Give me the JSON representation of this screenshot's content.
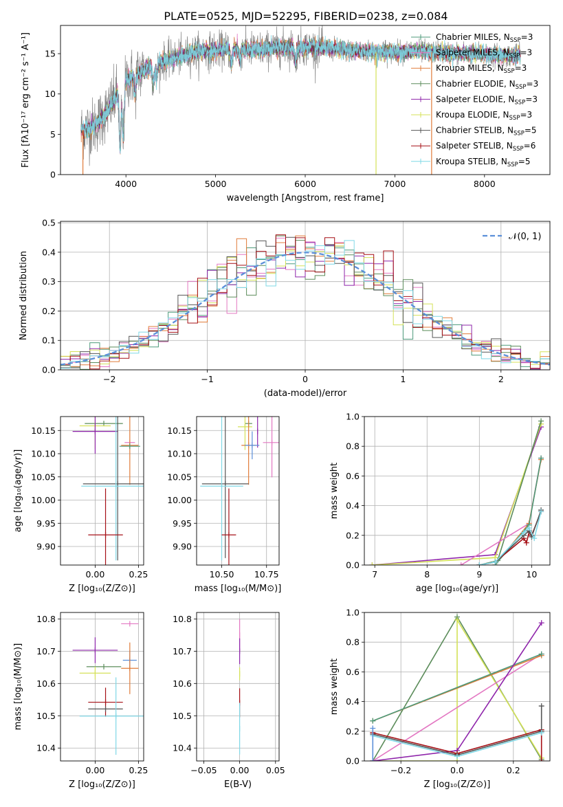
{
  "title": "PLATE=0525, MJD=52295, FIBERID=0238, z=0.084",
  "colors": {
    "chabrier_miles": "#4c9a7a",
    "salpeter_miles": "#e377c2",
    "kroupa_miles": "#e07b39",
    "chabrier_elodie": "#5b8c5a",
    "salpeter_elodie": "#8e24aa",
    "kroupa_elodie": "#d4e157",
    "chabrier_stelib": "#555555",
    "salpeter_stelib": "#a50f15",
    "kroupa_stelib": "#7fd8e6",
    "model_blue": "#5b8fd9",
    "normal": "#5b8fd9"
  },
  "chart_data": [
    {
      "id": "spectrum",
      "type": "line",
      "title": "PLATE=0525, MJD=52295, FIBERID=0238, z=0.084",
      "xlabel": "wavelength [Angstrom, rest frame]",
      "ylabel": "Flux [fλ10⁻¹⁷ erg cm⁻² s⁻¹ A⁻¹]",
      "xlim": [
        3270,
        8730
      ],
      "ylim": [
        0,
        18.5
      ],
      "xticks": [
        4000,
        5000,
        6000,
        7000,
        8000
      ],
      "yticks": [
        0,
        5,
        10,
        15
      ],
      "grid": false,
      "legend_position": "right",
      "legend": [
        {
          "label": "Chabrier MILES, N",
          "sub": "SSP",
          "suffix": "=3",
          "color": "#4c9a7a"
        },
        {
          "label": "Salpeter MILES, N",
          "sub": "SSP",
          "suffix": "=3",
          "color": "#e377c2"
        },
        {
          "label": "Kroupa MILES, N",
          "sub": "SSP",
          "suffix": "=3",
          "color": "#e07b39"
        },
        {
          "label": "Chabrier ELODIE, N",
          "sub": "SSP",
          "suffix": "=3",
          "color": "#5b8c5a"
        },
        {
          "label": "Salpeter ELODIE, N",
          "sub": "SSP",
          "suffix": "=3",
          "color": "#8e24aa"
        },
        {
          "label": "Kroupa ELODIE, N",
          "sub": "SSP",
          "suffix": "=3",
          "color": "#d4e157"
        },
        {
          "label": "Chabrier STELIB, N",
          "sub": "SSP",
          "suffix": "=5",
          "color": "#555555"
        },
        {
          "label": "Salpeter STELIB, N",
          "sub": "SSP",
          "suffix": "=6",
          "color": "#a50f15"
        },
        {
          "label": "Kroupa STELIB, N",
          "sub": "SSP",
          "suffix": "=5",
          "color": "#7fd8e6"
        }
      ],
      "continuum": {
        "x": [
          3500,
          3650,
          3800,
          3950,
          4050,
          4200,
          4400,
          4600,
          4800,
          5000,
          5200,
          5400,
          5600,
          5800,
          6000,
          6200,
          6400,
          6600,
          6800,
          7000,
          7200,
          7400,
          7600,
          7800,
          8000,
          8200,
          8400
        ],
        "y": [
          5.5,
          6.0,
          8.0,
          11.0,
          12.0,
          13.0,
          14.0,
          14.6,
          15.3,
          15.4,
          15.6,
          15.5,
          15.6,
          15.8,
          15.8,
          15.7,
          15.5,
          15.3,
          15.2,
          15.2,
          15.3,
          15.2,
          15.1,
          15.0,
          14.9,
          14.8,
          14.7
        ]
      },
      "dips": [
        {
          "x": 3935,
          "y": 3.0
        },
        {
          "x": 3970,
          "y": 4.5
        },
        {
          "x": 4100,
          "y": 10.0
        },
        {
          "x": 4305,
          "y": 11.5
        },
        {
          "x": 4340,
          "y": 12.0
        },
        {
          "x": 5175,
          "y": 13.5
        },
        {
          "x": 5270,
          "y": 14.2
        },
        {
          "x": 5890,
          "y": 13.8
        }
      ],
      "spikes_to_zero": [
        3520,
        6790,
        7410
      ]
    },
    {
      "id": "residuals",
      "type": "line",
      "xlabel": "(data-model)/error",
      "ylabel": "Normed distribution",
      "xlim": [
        -2.5,
        2.5
      ],
      "ylim": [
        0,
        0.505
      ],
      "xticks": [
        -2,
        -1,
        0,
        1,
        2
      ],
      "yticks": [
        0.0,
        0.1,
        0.2,
        0.3,
        0.4,
        0.5
      ],
      "grid": true,
      "legend_position": "top-right",
      "normal_label": "𝒩(0, 1)",
      "hist_bin_width": 0.1
    },
    {
      "id": "age_vs_Z",
      "type": "scatter",
      "xlabel": "Z [log₁₀(Z/Z⊙)]",
      "ylabel": "age  [log₁₀(age/yr)]",
      "xlim": [
        -0.2,
        0.28
      ],
      "ylim": [
        9.86,
        10.18
      ],
      "xticks": [
        0.0,
        0.25
      ],
      "xtick_labels": [
        "0.00",
        "0.25"
      ],
      "yticks": [
        9.9,
        9.95,
        10.0,
        10.05,
        10.1,
        10.15
      ],
      "ytick_labels": [
        "9.90",
        "9.95",
        "10.00",
        "10.05",
        "10.10",
        "10.15"
      ],
      "grid": true,
      "points": [
        {
          "model": "chabrier_elodie",
          "x": 0.05,
          "y": 10.165,
          "xerr": 0.11,
          "yerr": 0.0
        },
        {
          "model": "kroupa_elodie",
          "x": 0.0,
          "y": 10.16,
          "xerr": 0.09,
          "yerr": 0.05
        },
        {
          "model": "salpeter_elodie",
          "x": 0.0,
          "y": 10.148,
          "xerr": 0.13,
          "yerr": 0.048
        },
        {
          "model": "salpeter_miles",
          "x": 0.2,
          "y": 10.124,
          "xerr": 0.03,
          "yerr": 0.0
        },
        {
          "model": "kroupa_miles",
          "x": 0.2,
          "y": 10.118,
          "xerr": 0.05,
          "yerr": 0.085
        },
        {
          "model": "chabrier_miles",
          "x": 0.2,
          "y": 10.116,
          "xerr": 0.06,
          "yerr": 0.0
        },
        {
          "model": "chabrier_stelib",
          "x": 0.13,
          "y": 10.035,
          "xerr": 0.2,
          "yerr": 0.165
        },
        {
          "model": "kroupa_stelib",
          "x": 0.12,
          "y": 10.03,
          "xerr": 0.2,
          "yerr": 0.16
        },
        {
          "model": "salpeter_stelib",
          "x": 0.06,
          "y": 9.925,
          "xerr": 0.1,
          "yerr": 0.1
        }
      ]
    },
    {
      "id": "age_vs_mass",
      "type": "scatter",
      "xlabel": "mass [log₁₀(M/M⊙)]",
      "ylabel": "",
      "xlim": [
        10.36,
        10.82
      ],
      "ylim": [
        9.86,
        10.18
      ],
      "xticks": [
        10.5,
        10.75
      ],
      "xtick_labels": [
        "10.50",
        "10.75"
      ],
      "yticks": [
        9.9,
        9.95,
        10.0,
        10.05,
        10.1,
        10.15
      ],
      "ytick_labels": [
        "9.90",
        "9.95",
        "10.00",
        "10.05",
        "10.10",
        "10.15"
      ],
      "grid": true,
      "points": [
        {
          "model": "chabrier_elodie",
          "x": 10.65,
          "y": 10.165,
          "xerr": 0.02,
          "yerr": 0.0
        },
        {
          "model": "kroupa_elodie",
          "x": 10.63,
          "y": 10.158,
          "xerr": 0.04,
          "yerr": 0.05
        },
        {
          "model": "salpeter_elodie",
          "x": 10.7,
          "y": 10.148,
          "xerr": 0.0,
          "yerr": 0.035
        },
        {
          "model": "salpeter_miles",
          "x": 10.78,
          "y": 10.124,
          "xerr": 0.05,
          "yerr": 0.075
        },
        {
          "model": "kroupa_miles",
          "x": 10.65,
          "y": 10.118,
          "xerr": 0.04,
          "yerr": 0.085
        },
        {
          "model": "model_blue",
          "x": 10.67,
          "y": 10.118,
          "xerr": 0.04,
          "yerr": 0.03
        },
        {
          "model": "chabrier_stelib",
          "x": 10.52,
          "y": 10.035,
          "xerr": 0.13,
          "yerr": 0.16
        },
        {
          "model": "kroupa_stelib",
          "x": 10.5,
          "y": 10.03,
          "xerr": 0.12,
          "yerr": 0.16
        },
        {
          "model": "salpeter_stelib",
          "x": 10.54,
          "y": 9.925,
          "xerr": 0.04,
          "yerr": 0.1
        }
      ]
    },
    {
      "id": "mass_weight_vs_age",
      "type": "line",
      "xlabel": "age  [log₁₀(age/yr)]",
      "ylabel": "mass weight",
      "xlim": [
        6.8,
        10.35
      ],
      "ylim": [
        0,
        1.0
      ],
      "xticks": [
        7,
        8,
        9,
        10
      ],
      "yticks": [
        0.0,
        0.2,
        0.4,
        0.6,
        0.8,
        1.0
      ],
      "grid": true,
      "series": [
        {
          "model": "salpeter_elodie",
          "x": [
            6.95,
            9.3,
            10.18
          ],
          "y": [
            0.0,
            0.07,
            0.93
          ]
        },
        {
          "model": "kroupa_elodie",
          "x": [
            6.95,
            9.3,
            10.18
          ],
          "y": [
            0.0,
            0.05,
            0.95
          ]
        },
        {
          "model": "chabrier_elodie",
          "x": [
            9.0,
            9.35,
            10.18
          ],
          "y": [
            0.0,
            0.03,
            0.97
          ]
        },
        {
          "model": "salpeter_miles",
          "x": [
            8.65,
            9.95,
            10.18
          ],
          "y": [
            0.0,
            0.28,
            0.72
          ]
        },
        {
          "model": "kroupa_miles",
          "x": [
            9.3,
            9.95,
            10.18
          ],
          "y": [
            0.0,
            0.28,
            0.71
          ]
        },
        {
          "model": "chabrier_miles",
          "x": [
            9.3,
            9.95,
            10.18
          ],
          "y": [
            0.0,
            0.27,
            0.72
          ]
        },
        {
          "model": "salpeter_stelib",
          "x": [
            9.0,
            9.3,
            9.85,
            9.9,
            9.95,
            10.0,
            10.18
          ],
          "y": [
            0.0,
            0.02,
            0.18,
            0.15,
            0.22,
            0.2,
            0.36
          ]
        },
        {
          "model": "chabrier_stelib",
          "x": [
            9.0,
            9.3,
            9.85,
            9.95,
            10.0,
            10.18
          ],
          "y": [
            0.0,
            0.02,
            0.2,
            0.23,
            0.19,
            0.37
          ]
        },
        {
          "model": "kroupa_stelib",
          "x": [
            9.0,
            9.3,
            9.85,
            9.95,
            10.05,
            10.18
          ],
          "y": [
            0.0,
            0.02,
            0.22,
            0.25,
            0.18,
            0.36
          ]
        }
      ]
    },
    {
      "id": "mass_vs_Z",
      "type": "scatter",
      "xlabel": "Z [log₁₀(Z/Z⊙)]",
      "ylabel": "mass [log₁₀(M/M⊙)]",
      "xlim": [
        -0.2,
        0.28
      ],
      "ylim": [
        10.36,
        10.82
      ],
      "xticks": [
        0.0,
        0.25
      ],
      "xtick_labels": [
        "0.00",
        "0.25"
      ],
      "yticks": [
        10.4,
        10.5,
        10.6,
        10.7,
        10.8
      ],
      "ytick_labels": [
        "10.4",
        "10.5",
        "10.6",
        "10.7",
        "10.8"
      ],
      "grid": true,
      "points": [
        {
          "model": "salpeter_miles",
          "x": 0.2,
          "y": 10.785,
          "xerr": 0.05,
          "yerr": 0.0
        },
        {
          "model": "salpeter_elodie",
          "x": 0.0,
          "y": 10.703,
          "xerr": 0.13,
          "yerr": 0.04
        },
        {
          "model": "model_blue",
          "x": 0.2,
          "y": 10.672,
          "xerr": 0.04,
          "yerr": 0.03
        },
        {
          "model": "chabrier_elodie",
          "x": 0.05,
          "y": 10.652,
          "xerr": 0.1,
          "yerr": 0.0
        },
        {
          "model": "kroupa_miles",
          "x": 0.2,
          "y": 10.647,
          "xerr": 0.05,
          "yerr": 0.08
        },
        {
          "model": "kroupa_elodie",
          "x": 0.0,
          "y": 10.632,
          "xerr": 0.09,
          "yerr": 0.02
        },
        {
          "model": "salpeter_stelib",
          "x": 0.06,
          "y": 10.542,
          "xerr": 0.1,
          "yerr": 0.045
        },
        {
          "model": "chabrier_stelib",
          "x": 0.06,
          "y": 10.521,
          "xerr": 0.1,
          "yerr": 0.0
        },
        {
          "model": "kroupa_stelib",
          "x": 0.12,
          "y": 10.499,
          "xerr": 0.21,
          "yerr": 0.12
        }
      ]
    },
    {
      "id": "mass_vs_ebv",
      "type": "scatter",
      "xlabel": "E(B-V)",
      "ylabel": "",
      "xlim": [
        -0.06,
        0.055
      ],
      "ylim": [
        10.36,
        10.82
      ],
      "xticks": [
        -0.05,
        0.0,
        0.05
      ],
      "xtick_labels": [
        "−0.05",
        "0.00",
        "0.05"
      ],
      "yticks": [
        10.4,
        10.5,
        10.6,
        10.7,
        10.8
      ],
      "ytick_labels": [
        "10.4",
        "10.5",
        "10.6",
        "10.7",
        "10.8"
      ],
      "grid": true,
      "points": [
        {
          "model": "salpeter_miles",
          "x": 0.0,
          "y": 10.75,
          "xerr": 0.0,
          "yerr": 0.05
        },
        {
          "model": "salpeter_elodie",
          "x": 0.0,
          "y": 10.7,
          "xerr": 0.0,
          "yerr": 0.04
        },
        {
          "model": "kroupa_elodie",
          "x": 0.0,
          "y": 10.63,
          "xerr": 0.0,
          "yerr": 0.02
        },
        {
          "model": "salpeter_stelib",
          "x": 0.0,
          "y": 10.54,
          "xerr": 0.0,
          "yerr": 0.045
        },
        {
          "model": "kroupa_stelib",
          "x": 0.0,
          "y": 10.46,
          "xerr": 0.0,
          "yerr": 0.08
        }
      ]
    },
    {
      "id": "mass_weight_vs_Z",
      "type": "line",
      "xlabel": "Z [log₁₀(Z/Z⊙)]",
      "ylabel": "mass weight",
      "xlim": [
        -0.33,
        0.33
      ],
      "ylim": [
        0,
        1.0
      ],
      "xticks": [
        -0.2,
        0.0,
        0.2
      ],
      "xtick_labels": [
        "−0.2",
        "0.0",
        "0.2"
      ],
      "yticks": [
        0.0,
        0.2,
        0.4,
        0.6,
        0.8,
        1.0
      ],
      "ytick_labels": [
        "0.0",
        "0.2",
        "0.4",
        "0.6",
        "0.8",
        "1.0"
      ],
      "grid": true,
      "series": [
        {
          "model": "chabrier_elodie",
          "x": [
            -0.3,
            0.0,
            0.3
          ],
          "y": [
            0.0,
            0.97,
            0.01
          ]
        },
        {
          "model": "kroupa_elodie",
          "x": [
            -0.3,
            0.0,
            0.0,
            0.3
          ],
          "y": [
            0.0,
            0.0,
            0.95,
            0.02
          ]
        },
        {
          "model": "salpeter_miles",
          "x": [
            -0.3,
            0.3
          ],
          "y": [
            0.0,
            0.72
          ]
        },
        {
          "model": "kroupa_miles",
          "x": [
            -0.3,
            0.3
          ],
          "y": [
            0.27,
            0.71
          ]
        },
        {
          "model": "chabrier_miles",
          "x": [
            -0.3,
            0.3
          ],
          "y": [
            0.27,
            0.72
          ]
        },
        {
          "model": "salpeter_elodie",
          "x": [
            -0.3,
            0.0,
            0.3
          ],
          "y": [
            0.0,
            0.07,
            0.93
          ]
        },
        {
          "model": "salpeter_stelib",
          "x": [
            -0.3,
            0.0,
            0.3,
            0.3
          ],
          "y": [
            0.19,
            0.05,
            0.21,
            0.0
          ]
        },
        {
          "model": "chabrier_stelib",
          "x": [
            -0.3,
            0.0,
            0.3,
            0.3
          ],
          "y": [
            0.18,
            0.04,
            0.2,
            0.37
          ]
        },
        {
          "model": "kroupa_stelib",
          "x": [
            -0.3,
            0.0,
            0.3
          ],
          "y": [
            0.17,
            0.03,
            0.19
          ]
        },
        {
          "model": "model_blue",
          "x": [
            -0.3,
            -0.3
          ],
          "y": [
            0.22,
            0.0
          ]
        }
      ]
    }
  ]
}
